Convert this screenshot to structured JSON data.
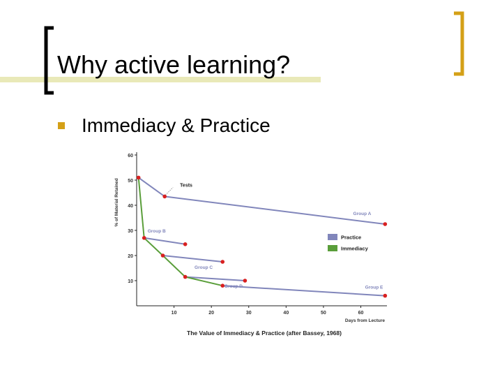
{
  "slide": {
    "title": "Why active learning?",
    "bullet": "Immediacy & Practice",
    "accent_color": "#d4a017",
    "band_color": "#e9e9b8",
    "bracket_color": "#000000"
  },
  "chart_data": {
    "type": "line",
    "title": "The Value of Immediacy & Practice (after Bassey, 1968)",
    "xlabel": "Days from Lecture",
    "ylabel": "% of Material Retained",
    "xlim": [
      0,
      67
    ],
    "ylim": [
      0,
      60
    ],
    "x_ticks": [
      10,
      20,
      30,
      40,
      50,
      60
    ],
    "y_ticks": [
      10,
      20,
      30,
      40,
      50,
      60
    ],
    "grid": false,
    "legend": {
      "placement": "right",
      "entries": [
        {
          "label": "Practice",
          "color": "#8186bb"
        },
        {
          "label": "Immediacy",
          "color": "#5a9e3a"
        }
      ]
    },
    "point_color": "#d92020",
    "practice_series": [
      {
        "name": "Group A",
        "points": [
          [
            0.5,
            51
          ],
          [
            7.5,
            43.5
          ],
          [
            66.5,
            32.5
          ]
        ]
      },
      {
        "name": "Group B",
        "points": [
          [
            2,
            27
          ],
          [
            13,
            24.5
          ]
        ]
      },
      {
        "name": "Group C",
        "points": [
          [
            7,
            20
          ],
          [
            23,
            17.5
          ]
        ]
      },
      {
        "name": "Group D",
        "points": [
          [
            13,
            11.5
          ],
          [
            29,
            10
          ]
        ]
      },
      {
        "name": "Group E",
        "points": [
          [
            23,
            8
          ],
          [
            66.5,
            4
          ]
        ]
      }
    ],
    "immediacy_series": {
      "points": [
        [
          0.5,
          51
        ],
        [
          2,
          27
        ],
        [
          7,
          20
        ],
        [
          13,
          11.5
        ],
        [
          23,
          8
        ]
      ]
    },
    "annotation": {
      "text": "Tests",
      "at": [
        7.5,
        43.5
      ]
    }
  }
}
